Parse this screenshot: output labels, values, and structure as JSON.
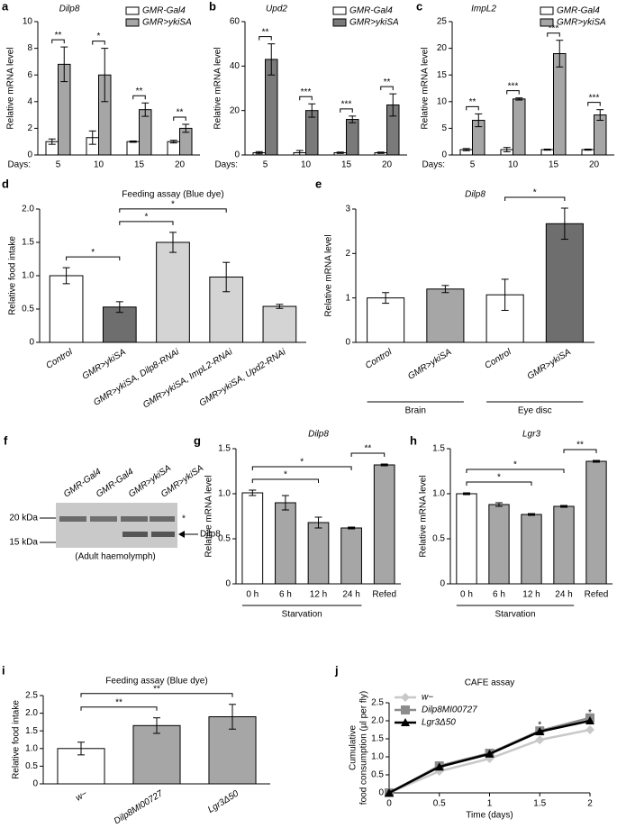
{
  "chart_data": [
    {
      "type": "grouped_bar",
      "panel": "a",
      "title": "Dilp8",
      "ylabel": "Relative mRNA level",
      "x_prefix": "Days:",
      "categories": [
        "5",
        "10",
        "15",
        "20"
      ],
      "ylim": [
        0,
        10
      ],
      "yticks": [
        0,
        2,
        4,
        6,
        8,
        10
      ],
      "series": [
        {
          "name": "GMR-Gal4",
          "color": "#ffffff",
          "values": [
            1,
            1.3,
            1,
            1
          ],
          "errors": [
            0.2,
            0.5,
            0.05,
            0.1
          ]
        },
        {
          "name": "GMR>ykiSA",
          "color": "#a6a6a6",
          "values": [
            6.8,
            6,
            3.4,
            2
          ],
          "errors": [
            1.3,
            2,
            0.5,
            0.3
          ]
        }
      ],
      "significance": [
        "**",
        "*",
        "**",
        "**"
      ]
    },
    {
      "type": "grouped_bar",
      "panel": "b",
      "title": "Upd2",
      "ylabel": "Relative mRNA level",
      "x_prefix": "Days:",
      "categories": [
        "5",
        "10",
        "15",
        "20"
      ],
      "ylim": [
        0,
        60
      ],
      "yticks": [
        0,
        20,
        40,
        60
      ],
      "series": [
        {
          "name": "GMR-Gal4",
          "color": "#ffffff",
          "values": [
            1,
            1,
            1,
            1
          ],
          "errors": [
            0.5,
            1,
            0.3,
            0.3
          ]
        },
        {
          "name": "GMR>ykiSA",
          "color": "#7a7a7a",
          "values": [
            43,
            20,
            16,
            22.5
          ],
          "errors": [
            7,
            3,
            1.5,
            5
          ]
        }
      ],
      "significance": [
        "**",
        "***",
        "***",
        "**"
      ]
    },
    {
      "type": "grouped_bar",
      "panel": "c",
      "title": "ImpL2",
      "ylabel": "Relative mRNA level",
      "x_prefix": "Days:",
      "categories": [
        "5",
        "10",
        "15",
        "20"
      ],
      "ylim": [
        0,
        25
      ],
      "yticks": [
        0,
        5,
        10,
        15,
        20,
        25
      ],
      "series": [
        {
          "name": "GMR-Gal4",
          "color": "#ffffff",
          "values": [
            1,
            1,
            1,
            1
          ],
          "errors": [
            0.2,
            0.4,
            0.1,
            0.1
          ]
        },
        {
          "name": "GMR>ykiSA",
          "color": "#a6a6a6",
          "values": [
            6.5,
            10.5,
            19,
            7.5
          ],
          "errors": [
            1.2,
            0.2,
            2.5,
            1
          ]
        }
      ],
      "significance": [
        "**",
        "***",
        "***",
        "***"
      ]
    },
    {
      "type": "bar",
      "panel": "d",
      "title": "Feeding assay (Blue dye)",
      "ylabel": "Relative food intake",
      "categories": [
        "Control",
        "GMR>ykiSA",
        "GMR>ykiSA, Dilp8-RNAi",
        "GMR>ykiSA, ImpL2-RNAi",
        "GMR>ykiSA, Upd2-RNAi"
      ],
      "values": [
        1,
        0.53,
        1.5,
        0.98,
        0.54
      ],
      "errors": [
        0.12,
        0.08,
        0.15,
        0.22,
        0.03
      ],
      "colors": [
        "#ffffff",
        "#6e6e6e",
        "#d4d4d4",
        "#d4d4d4",
        "#d4d4d4"
      ],
      "ylim": [
        0,
        2
      ],
      "yticks": [
        0,
        {
          "value": 0.5,
          "label": "0.5"
        },
        {
          "value": 1,
          "label": "1.0"
        },
        {
          "value": 1.5,
          "label": "1.5"
        },
        {
          "value": 2,
          "label": "2.0"
        }
      ],
      "comparisons": [
        {
          "pair": [
            0,
            1
          ],
          "label": "*"
        },
        {
          "pair": [
            1,
            2
          ],
          "label": "*"
        },
        {
          "pair": [
            1,
            3
          ],
          "label": "*"
        }
      ]
    },
    {
      "type": "bar",
      "panel": "e",
      "title": "Dilp8",
      "ylabel": "Relative mRNA level",
      "categories": [
        "Control",
        "GMR>ykiSA",
        "Control",
        "GMR>ykiSA"
      ],
      "values": [
        1,
        1.2,
        1.07,
        2.67
      ],
      "errors": [
        0.12,
        0.08,
        0.35,
        0.35
      ],
      "colors": [
        "#ffffff",
        "#a6a6a6",
        "#ffffff",
        "#6e6e6e"
      ],
      "ylim": [
        0,
        3
      ],
      "yticks": [
        0,
        1,
        2,
        3
      ],
      "comparisons": [
        {
          "pair": [
            2,
            3
          ],
          "label": "*"
        }
      ],
      "groups": [
        {
          "label": "Brain",
          "span": [
            0,
            1
          ]
        },
        {
          "label": "Eye disc",
          "span": [
            2,
            3
          ]
        }
      ]
    },
    {
      "type": "bar",
      "panel": "g",
      "title": "Dilp8",
      "ylabel": "Relative mRNA level",
      "categories": [
        "0 h",
        "6 h",
        "12 h",
        "24 h",
        "Refed"
      ],
      "values": [
        1.01,
        0.9,
        0.68,
        0.62,
        1.32
      ],
      "errors": [
        0.03,
        0.08,
        0.06,
        0.01,
        0.01
      ],
      "colors": [
        "#ffffff",
        "#a6a6a6",
        "#a6a6a6",
        "#a6a6a6",
        "#a6a6a6"
      ],
      "ylim": [
        0,
        1.5
      ],
      "yticks": [
        0,
        {
          "value": 0.5,
          "label": "0.5"
        },
        {
          "value": 1,
          "label": "1.0"
        },
        {
          "value": 1.5,
          "label": "1.5"
        }
      ],
      "comparisons": [
        {
          "pair": [
            0,
            2
          ],
          "label": "*"
        },
        {
          "pair": [
            0,
            3
          ],
          "label": "*"
        },
        {
          "pair": [
            3,
            4
          ],
          "label": "**"
        }
      ],
      "groups": [
        {
          "label": "Starvation",
          "span": [
            0,
            3
          ]
        }
      ]
    },
    {
      "type": "bar",
      "panel": "h",
      "title": "Lgr3",
      "ylabel": "Relative mRNA level",
      "categories": [
        "0 h",
        "6 h",
        "12 h",
        "24 h",
        "Refed"
      ],
      "values": [
        1,
        0.88,
        0.77,
        0.86,
        1.36
      ],
      "errors": [
        0.01,
        0.02,
        0.01,
        0.01,
        0.01
      ],
      "colors": [
        "#ffffff",
        "#a6a6a6",
        "#a6a6a6",
        "#a6a6a6",
        "#a6a6a6"
      ],
      "ylim": [
        0,
        1.5
      ],
      "yticks": [
        0,
        {
          "value": 0.5,
          "label": "0.5"
        },
        {
          "value": 1,
          "label": "1.0"
        },
        {
          "value": 1.5,
          "label": "1.5"
        }
      ],
      "comparisons": [
        {
          "pair": [
            0,
            2
          ],
          "label": "*"
        },
        {
          "pair": [
            0,
            3
          ],
          "label": "*"
        },
        {
          "pair": [
            3,
            4
          ],
          "label": "**"
        }
      ],
      "groups": [
        {
          "label": "Starvation",
          "span": [
            0,
            3
          ]
        }
      ]
    },
    {
      "type": "bar",
      "panel": "i",
      "title": "Feeding assay (Blue dye)",
      "ylabel": "Relative food intake",
      "categories": [
        "w−",
        "Dilp8MI00727",
        "Lgr3Δ50"
      ],
      "values": [
        1,
        1.65,
        1.9
      ],
      "errors": [
        0.18,
        0.22,
        0.35
      ],
      "colors": [
        "#ffffff",
        "#a6a6a6",
        "#a6a6a6"
      ],
      "ylim": [
        0,
        2.5
      ],
      "yticks": [
        0,
        {
          "value": 0.5,
          "label": "0.5"
        },
        {
          "value": 1,
          "label": "1.0"
        },
        {
          "value": 1.5,
          "label": "1.5"
        },
        {
          "value": 2,
          "label": "2.0"
        },
        {
          "value": 2.5,
          "label": "2.5"
        }
      ],
      "comparisons": [
        {
          "pair": [
            0,
            1
          ],
          "label": "**"
        },
        {
          "pair": [
            0,
            2
          ],
          "label": "**"
        }
      ]
    },
    {
      "type": "line",
      "panel": "j",
      "title": "CAFE assay",
      "xlabel": "Time (days)",
      "ylabel": [
        "Cumulative",
        "food consumption (µl per fly)"
      ],
      "x": [
        0,
        0.5,
        1,
        1.5,
        2
      ],
      "xlim": [
        0,
        2
      ],
      "xticks": [
        0,
        0.5,
        1,
        1.5,
        2
      ],
      "ylim": [
        0,
        2.5
      ],
      "yticks": [
        0,
        {
          "value": 0.5,
          "label": "0.5"
        },
        {
          "value": 1,
          "label": "1.0"
        },
        {
          "value": 1.5,
          "label": "1.5"
        },
        {
          "value": 2,
          "label": "2.0"
        },
        {
          "value": 2.5,
          "label": "2.5"
        }
      ],
      "series": [
        {
          "name": "w−",
          "color": "#c8c8c8",
          "marker": "diamond",
          "values": [
            0,
            0.6,
            0.95,
            1.47,
            1.75
          ]
        },
        {
          "name": "Dilp8MI00727",
          "color": "#8c8c8c",
          "marker": "square",
          "values": [
            0,
            0.75,
            1.1,
            1.72,
            2.08
          ]
        },
        {
          "name": "Lgr3Δ50",
          "color": "#000000",
          "marker": "triangle",
          "values": [
            0,
            0.72,
            1.08,
            1.7,
            2
          ]
        }
      ],
      "annotations": [
        {
          "x": 1.5,
          "y": 1.88,
          "text": "*"
        },
        {
          "x": 2,
          "y": 2.22,
          "text": "*"
        }
      ]
    }
  ],
  "blot": {
    "panel": "f",
    "lanes": [
      "GMR-Gal4",
      "GMR-Gal4",
      "GMR>ykiSA",
      "GMR>ykiSA"
    ],
    "marker_high": "20 kDa",
    "marker_low": "15 kDa",
    "star": "*",
    "band": "Dilp8",
    "caption": "(Adult haemolymph)"
  }
}
